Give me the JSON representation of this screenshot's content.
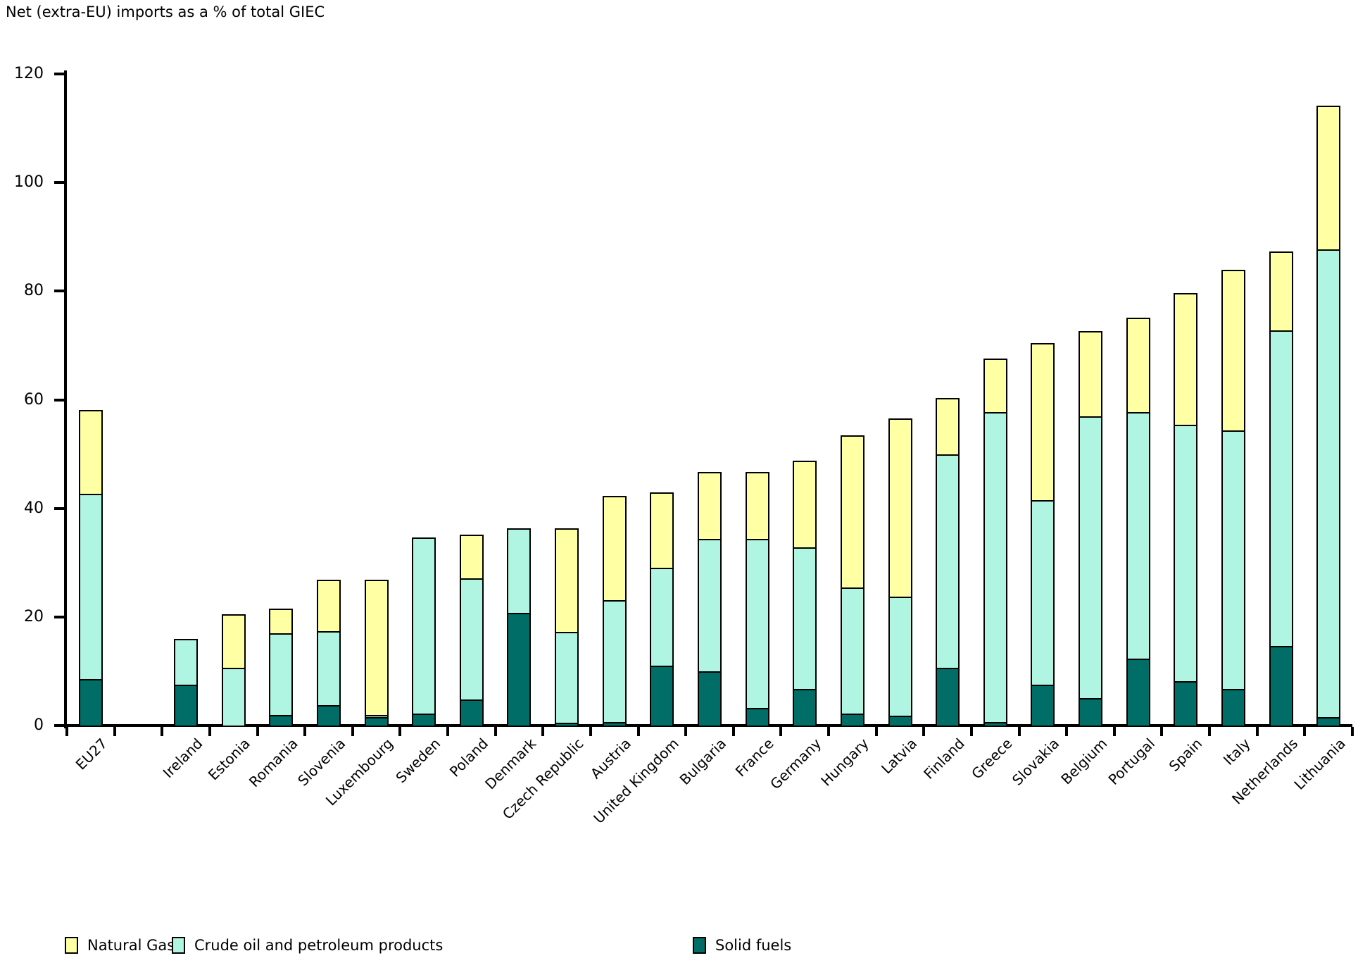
{
  "title": "Net (extra-EU) imports as a % of total GIEC",
  "colors": {
    "natural_gas": "#FFFFA3",
    "crude_oil": "#AFF5E1",
    "solid_fuels": "#006E66",
    "axis": "#000000",
    "background": "#FFFFFF"
  },
  "legend": [
    {
      "label": "Natural Gas",
      "color": "#FFFFA3"
    },
    {
      "label": "Crude oil and petroleum products",
      "color": "#AFF5E1"
    },
    {
      "label": "Solid fuels",
      "color": "#006E66"
    }
  ],
  "chart_data": {
    "type": "bar",
    "stacked": true,
    "title": "Net (extra-EU) imports as a % of total GIEC",
    "xlabel": "",
    "ylabel": "",
    "ylim": [
      0,
      120
    ],
    "yticks": [
      0,
      20,
      40,
      60,
      80,
      100,
      120
    ],
    "grid": false,
    "legend_position": "bottom",
    "gap_after_first_category": true,
    "categories": [
      "EU27",
      "Ireland",
      "Estonia",
      "Romania",
      "Slovenia",
      "Luxembourg",
      "Sweden",
      "Poland",
      "Denmark",
      "Czech Republic",
      "Austria",
      "United Kingdom",
      "Bulgaria",
      "France",
      "Germany",
      "Hungary",
      "Latvia",
      "Finland",
      "Greece",
      "Slovakia",
      "Belgium",
      "Portugal",
      "Spain",
      "Italy",
      "Netherlands",
      "Lithuania"
    ],
    "series": [
      {
        "name": "Solid fuels",
        "color": "#006E66",
        "values": [
          8.5,
          7.5,
          0,
          1.9,
          3.7,
          1.5,
          2.2,
          4.8,
          20.7,
          0.5,
          0.6,
          11.0,
          10.0,
          3.3,
          6.8,
          2.2,
          1.8,
          10.7,
          0.6,
          7.5,
          5.0,
          12.3,
          8.2,
          6.7,
          14.6,
          1.6
        ]
      },
      {
        "name": "Crude oil and petroleum products",
        "color": "#AFF5E1",
        "values": [
          34.2,
          8.5,
          10.7,
          15.1,
          13.7,
          0.4,
          32.4,
          22.3,
          15.6,
          16.7,
          22.5,
          18.0,
          24.4,
          31.1,
          26.0,
          23.2,
          22.0,
          39.2,
          57.1,
          34.0,
          52.0,
          45.4,
          47.2,
          47.7,
          58.2,
          86.1
        ]
      },
      {
        "name": "Natural Gas",
        "color": "#FFFFA3",
        "values": [
          15.4,
          0,
          9.8,
          4.5,
          9.4,
          24.9,
          0,
          8.1,
          0,
          19.1,
          19.2,
          14.0,
          12.3,
          12.3,
          16.0,
          28.1,
          32.7,
          10.4,
          9.9,
          29.0,
          15.7,
          17.4,
          24.3,
          29.6,
          14.5,
          26.4
        ]
      }
    ],
    "totals": [
      58.1,
      16.0,
      20.5,
      21.5,
      26.8,
      26.8,
      34.6,
      35.2,
      36.3,
      36.3,
      42.3,
      43.0,
      46.7,
      46.7,
      48.8,
      53.5,
      56.5,
      60.3,
      67.6,
      70.5,
      72.7,
      75.1,
      79.7,
      84.0,
      87.3,
      114.1
    ]
  }
}
